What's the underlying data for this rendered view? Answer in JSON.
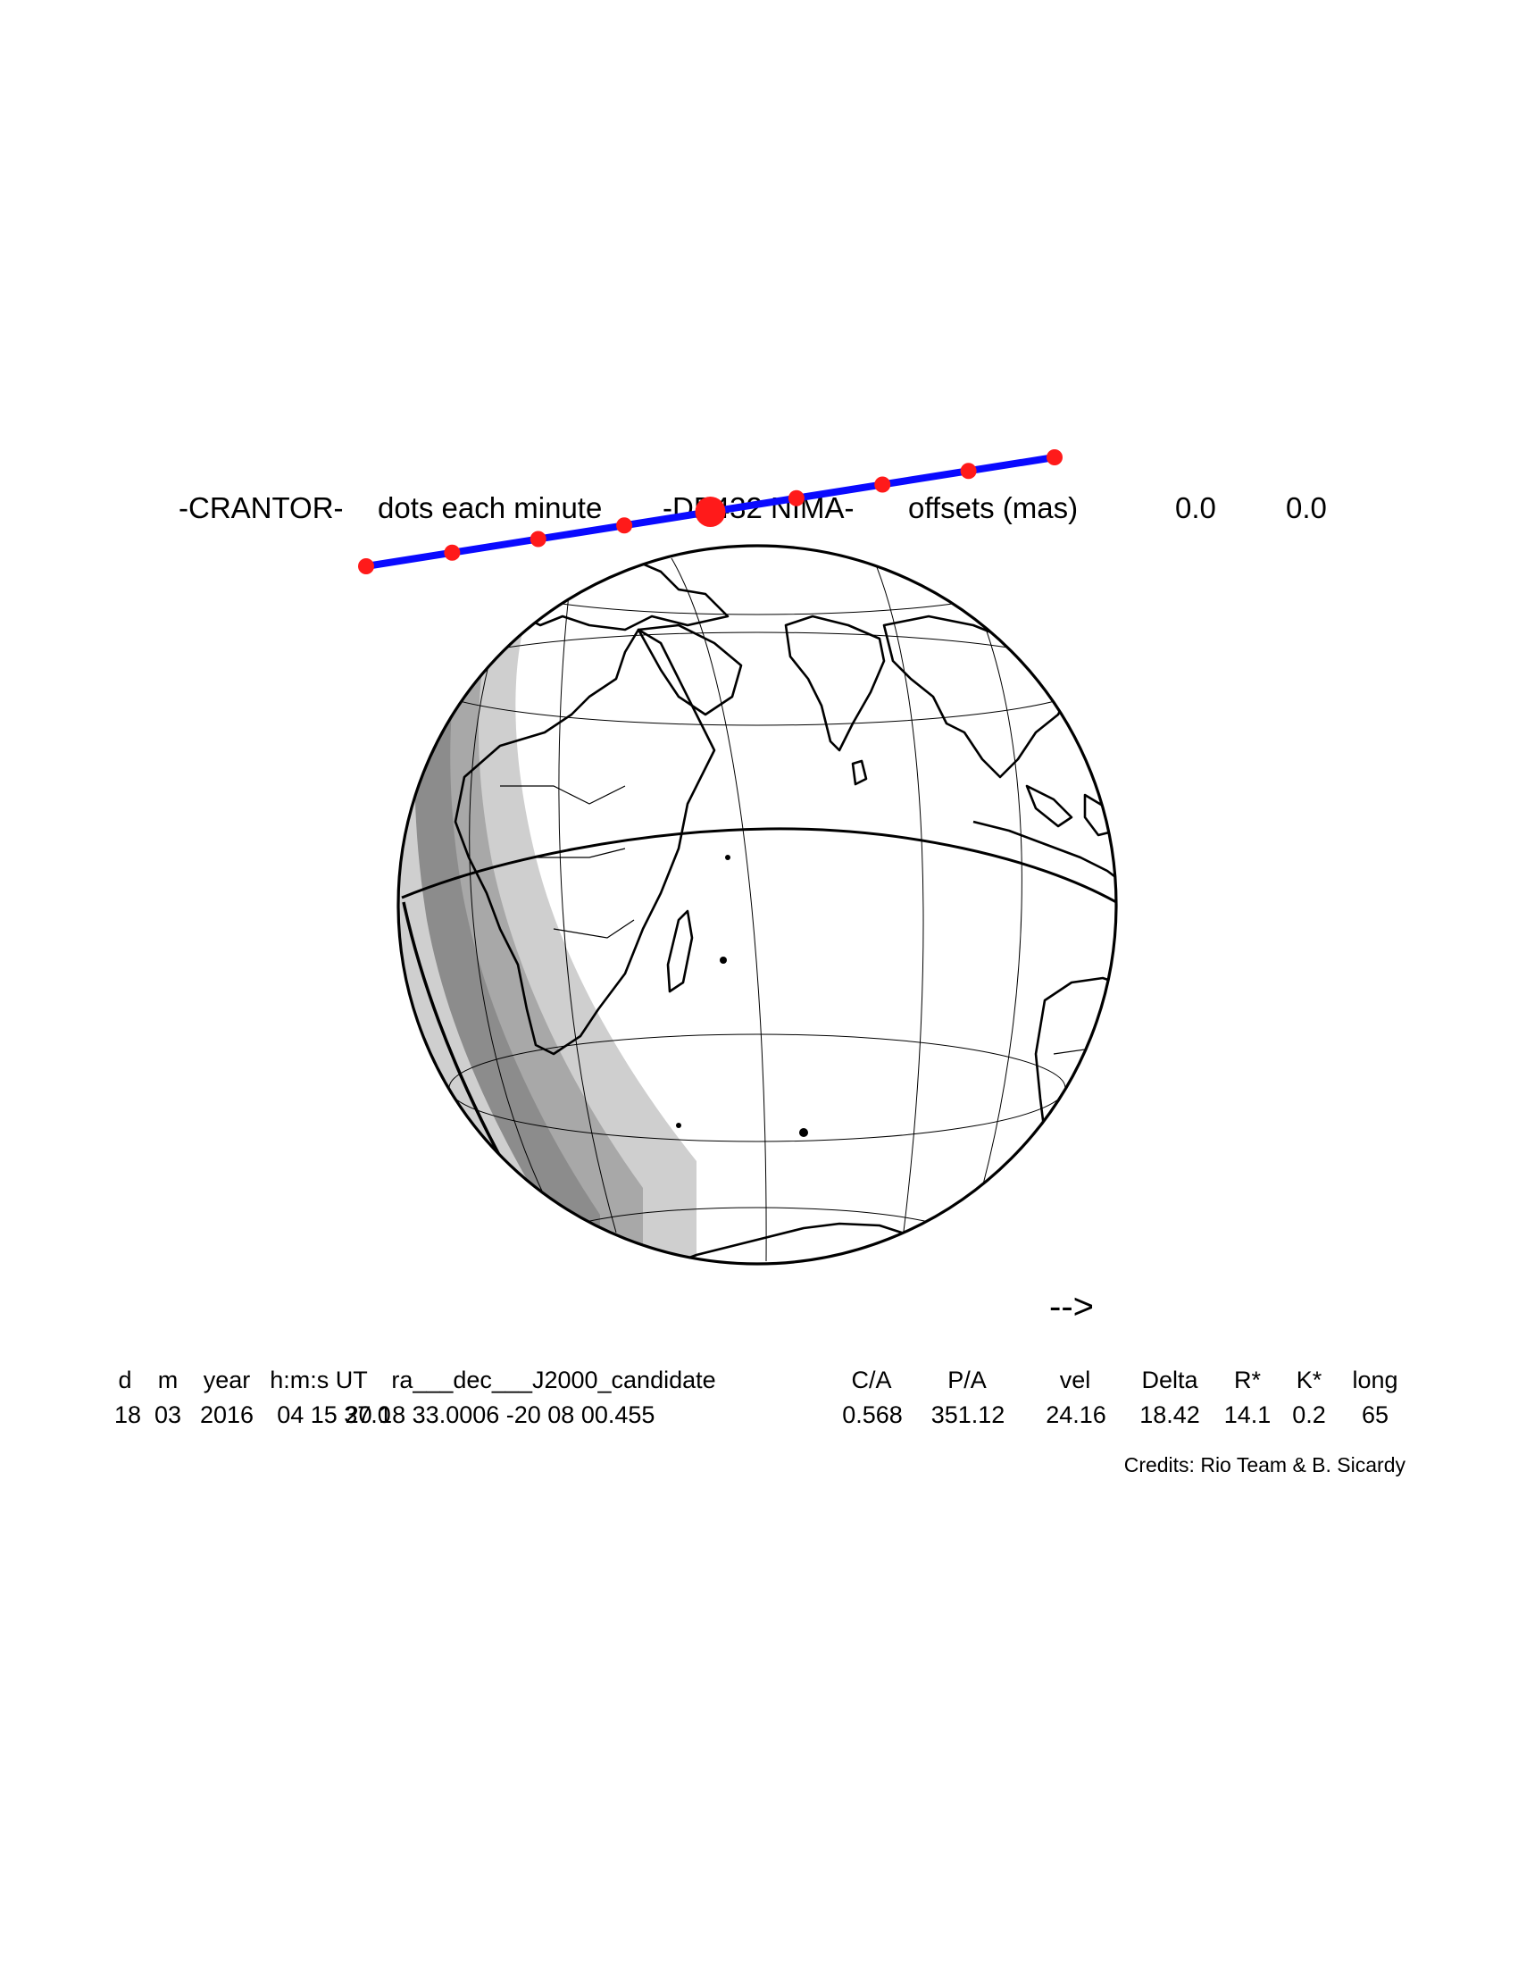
{
  "header": {
    "object": "-CRANTOR-",
    "dots_label": "dots each minute",
    "source": "-DE432 NIMA-",
    "offsets_label": "offsets (mas)",
    "offset_ra": "0.0",
    "offset_dec": "0.0"
  },
  "track": {
    "line_color": "#0a0aff",
    "dot_color": "#ff1a1a",
    "minute_dots": 9,
    "highlight_dot_index": 4
  },
  "direction_arrow": "-->",
  "table": {
    "headers": [
      "d",
      "m",
      "year",
      "h:m:s UT",
      "ra___dec___J2000_candidate",
      "C/A",
      "P/A",
      "vel",
      "Delta",
      "R*",
      "K*",
      "long"
    ],
    "values": [
      "18",
      "03",
      "2016",
      "04 15 37.0",
      "20 18 33.0006 -20 08 00.455",
      "0.568",
      "351.12",
      "24.16",
      "18.42",
      "14.1",
      "0.2",
      "65"
    ]
  },
  "credits": "Credits: Rio Team & B. Sicardy",
  "colors": {
    "shadow_dark": "#8c8c8c",
    "shadow_medium": "#a8a8a8",
    "shadow_light": "#cfcfcf",
    "centerline": "#000000"
  }
}
